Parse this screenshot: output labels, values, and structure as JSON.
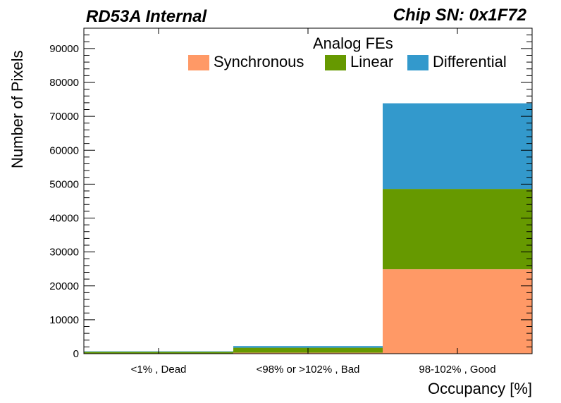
{
  "header": {
    "left_title": "RD53A Internal",
    "right_title": "Chip SN: 0x1F72"
  },
  "chart_data": {
    "type": "bar",
    "stacked": true,
    "categories": [
      "<1% , Dead",
      "<98% or >102% , Bad",
      "98-102% , Good"
    ],
    "series": [
      {
        "name": "Synchronous",
        "color": "#ff9966",
        "values": [
          100,
          300,
          24900
        ]
      },
      {
        "name": "Linear",
        "color": "#669900",
        "values": [
          450,
          1450,
          23700
        ]
      },
      {
        "name": "Differential",
        "color": "#3399cc",
        "values": [
          150,
          500,
          25250
        ]
      }
    ],
    "xlabel": "Occupancy [%]",
    "ylabel": "Number of Pixels",
    "ylim": [
      0,
      96000
    ],
    "yticks": [
      0,
      10000,
      20000,
      30000,
      40000,
      50000,
      60000,
      70000,
      80000,
      90000
    ],
    "ytick_labels": [
      "0",
      "10000",
      "20000",
      "30000",
      "40000",
      "50000",
      "60000",
      "70000",
      "80000",
      "90000"
    ],
    "legend": {
      "title": "Analog FEs",
      "placement": "top-right"
    },
    "grid": false
  }
}
